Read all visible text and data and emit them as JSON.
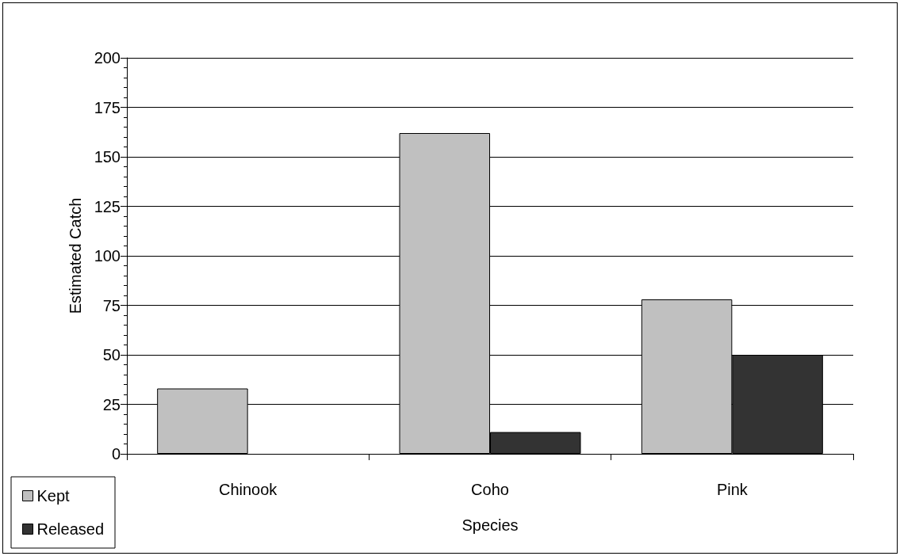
{
  "chart_data": {
    "type": "bar",
    "xlabel": "Species",
    "ylabel": "Estimated Catch",
    "categories": [
      "Chinook",
      "Coho",
      "Pink"
    ],
    "series": [
      {
        "name": "Kept",
        "color": "#c0c0c0",
        "values": [
          33,
          162,
          78
        ]
      },
      {
        "name": "Released",
        "color": "#333333",
        "values": [
          null,
          11,
          50
        ]
      }
    ],
    "ylim": [
      0,
      200
    ],
    "yticks": [
      0,
      25,
      50,
      75,
      100,
      125,
      150,
      175,
      200
    ],
    "grid": "y",
    "legend": "bottom left"
  }
}
